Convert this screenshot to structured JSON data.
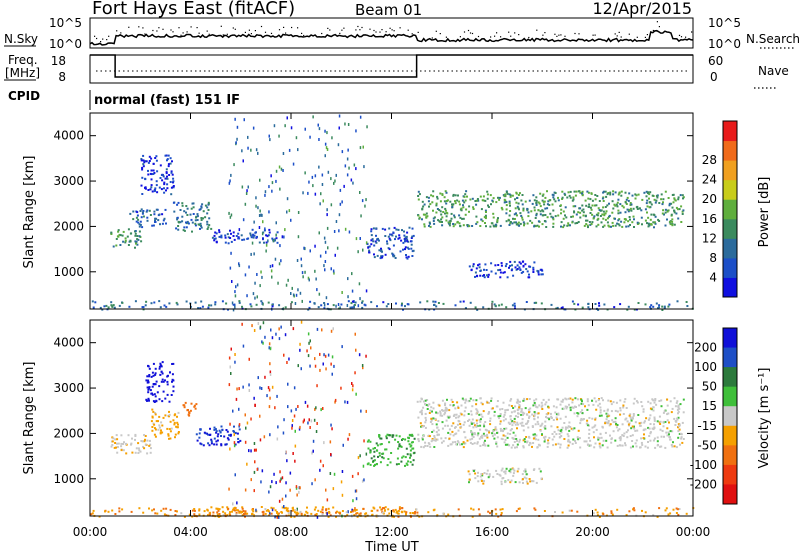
{
  "header": {
    "station": "Fort Hays East (fitACF)",
    "beam": "Beam 01",
    "date": "12/Apr/2015"
  },
  "panels": {
    "nsky": {
      "label": "N.Sky",
      "left_ticks": [
        "10^5",
        "10^0"
      ],
      "right_ticks": [
        "10^5",
        "10^0"
      ],
      "right_label": "N.Search"
    },
    "freq": {
      "label": "Freq.",
      "unit": "[MHz]",
      "left_ticks": [
        "18",
        "8"
      ],
      "right_ticks": [
        "60",
        "0"
      ],
      "right_label": "Nave",
      "step_times_h": [
        1.0,
        13.0
      ],
      "high_mhz": 18,
      "low_mhz": 10.5
    },
    "cpid": {
      "label": "CPID",
      "text": "normal (fast) 151 IF"
    }
  },
  "chart_data": [
    {
      "type": "heatmap",
      "name": "Power",
      "xlabel": "Time UT",
      "ylabel": "Slant Range [km]",
      "xlim": [
        0,
        24
      ],
      "ylim": [
        180,
        4500
      ],
      "x_ticks": [
        "00:00",
        "04:00",
        "08:00",
        "12:00",
        "16:00",
        "20:00",
        "00:00"
      ],
      "y_ticks": [
        1000,
        2000,
        3000,
        4000
      ],
      "colorbar": {
        "label": "Power [dB]",
        "ticks": [
          4,
          8,
          12,
          16,
          20,
          24,
          28
        ],
        "colors": [
          "#1010e0",
          "#1c4fc8",
          "#2b6b9c",
          "#3b8a5e",
          "#5fae3d",
          "#c8cc1a",
          "#f0a020",
          "#f06a1a",
          "#e81b1b"
        ]
      },
      "echo_regions": [
        {
          "t_start": 0.8,
          "t_end": 2.0,
          "r_start": 1550,
          "r_end": 2000,
          "power_db": 14
        },
        {
          "t_start": 1.5,
          "t_end": 3.0,
          "r_start": 2000,
          "r_end": 2400,
          "power_db": 8
        },
        {
          "t_start": 2.0,
          "t_end": 3.3,
          "r_start": 2700,
          "r_end": 3600,
          "power_db": 4
        },
        {
          "t_start": 3.3,
          "t_end": 4.8,
          "r_start": 1900,
          "r_end": 2550,
          "power_db": 11
        },
        {
          "t_start": 4.8,
          "t_end": 7.5,
          "r_start": 1650,
          "r_end": 1950,
          "power_db": 5
        },
        {
          "t_start": 11.0,
          "t_end": 12.9,
          "r_start": 1300,
          "r_end": 2000,
          "power_db": 7
        },
        {
          "t_start": 13.0,
          "t_end": 23.6,
          "r_start": 2000,
          "r_end": 2800,
          "power_db": 15
        },
        {
          "t_start": 15.0,
          "t_end": 18.0,
          "r_start": 900,
          "r_end": 1250,
          "power_db": 4
        }
      ]
    },
    {
      "type": "heatmap",
      "name": "Velocity",
      "xlabel": "Time UT",
      "ylabel": "Slant Range [km]",
      "xlim": [
        0,
        24
      ],
      "ylim": [
        180,
        4500
      ],
      "x_ticks": [
        "00:00",
        "04:00",
        "08:00",
        "12:00",
        "16:00",
        "20:00",
        "00:00"
      ],
      "y_ticks": [
        1000,
        2000,
        3000,
        4000
      ],
      "colorbar": {
        "label": "Velocity [m s^-1]",
        "ticks": [
          "200",
          "100",
          "50",
          "15",
          "-15",
          "-50",
          "-100",
          "-200"
        ],
        "colors": [
          "#1010d8",
          "#1e4fc6",
          "#2c7a3c",
          "#3fbf3a",
          "#c8c8c8",
          "#f5a000",
          "#f07010",
          "#ee3a10",
          "#e01010"
        ]
      },
      "echo_regions": [
        {
          "t_start": 0.8,
          "t_end": 2.4,
          "r_start": 1550,
          "r_end": 2000,
          "velocity": -5
        },
        {
          "t_start": 2.4,
          "t_end": 3.5,
          "r_start": 1900,
          "r_end": 2550,
          "velocity": -30
        },
        {
          "t_start": 2.2,
          "t_end": 3.3,
          "r_start": 2700,
          "r_end": 3600,
          "velocity": 250
        },
        {
          "t_start": 3.5,
          "t_end": 4.2,
          "r_start": 2400,
          "r_end": 2700,
          "velocity": -80
        },
        {
          "t_start": 4.2,
          "t_end": 6.0,
          "r_start": 1750,
          "r_end": 2200,
          "velocity": 200
        },
        {
          "t_start": 11.0,
          "t_end": 12.9,
          "r_start": 1300,
          "r_end": 2000,
          "velocity": 40
        },
        {
          "t_start": 13.0,
          "t_end": 23.6,
          "r_start": 1700,
          "r_end": 2800,
          "velocity": 0
        },
        {
          "t_start": 15.0,
          "t_end": 18.0,
          "r_start": 900,
          "r_end": 1250,
          "velocity": 0
        },
        {
          "t_start": 4.0,
          "t_end": 13.0,
          "r_start": 180,
          "r_end": 400,
          "velocity": -40
        }
      ]
    }
  ]
}
